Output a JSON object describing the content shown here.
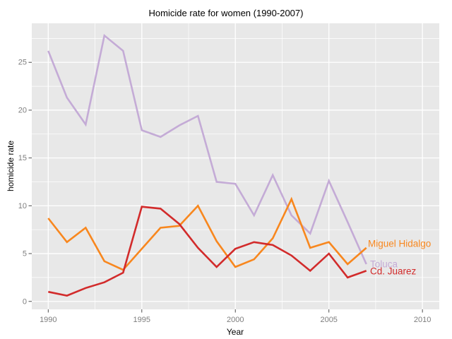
{
  "header": {
    "title": "Homicide rate for women (1990-2007)"
  },
  "chart_data": {
    "type": "line",
    "title": "Homicide rate for women (1990-2007)",
    "xlabel": "Year",
    "ylabel": "homicide rate",
    "x": [
      1990,
      1991,
      1992,
      1993,
      1994,
      1995,
      1996,
      1997,
      1998,
      1999,
      2000,
      2001,
      2002,
      2003,
      2004,
      2005,
      2006,
      2007
    ],
    "series": [
      {
        "name": "Toluca",
        "color": "#C4ABD6",
        "values": [
          26.2,
          21.3,
          18.5,
          27.8,
          26.2,
          17.9,
          17.2,
          18.4,
          19.4,
          12.5,
          12.3,
          9.0,
          13.2,
          9.0,
          7.1,
          12.6,
          8.3,
          3.9
        ]
      },
      {
        "name": "Miguel Hidalgo",
        "color": "#F8871E",
        "values": [
          8.7,
          6.2,
          7.7,
          4.2,
          3.3,
          5.5,
          7.7,
          7.9,
          10.0,
          6.3,
          3.6,
          4.4,
          6.6,
          10.7,
          5.6,
          6.2,
          3.9,
          5.6
        ]
      },
      {
        "name": "Cd. Juarez",
        "color": "#D22B2B",
        "values": [
          1.0,
          0.6,
          1.4,
          2.0,
          3.0,
          9.9,
          9.7,
          8.1,
          5.6,
          3.6,
          5.5,
          6.2,
          5.9,
          4.8,
          3.2,
          5.0,
          2.5,
          3.2
        ]
      }
    ],
    "x_ticks": [
      1990,
      1995,
      2000,
      2005,
      2010
    ],
    "y_ticks": [
      0,
      5,
      10,
      15,
      20,
      25
    ],
    "xlim": [
      1989.12,
      2010.9
    ],
    "ylim": [
      -0.83,
      29.08
    ],
    "grid": true,
    "legend_position": "inline-right",
    "colors": {
      "panel_bg": "#E8E8E8",
      "grid": "#FFFFFF",
      "tick_mark": "#4D4D4D",
      "tick_label": "#7E7E7E",
      "title_text": "#000000"
    }
  }
}
